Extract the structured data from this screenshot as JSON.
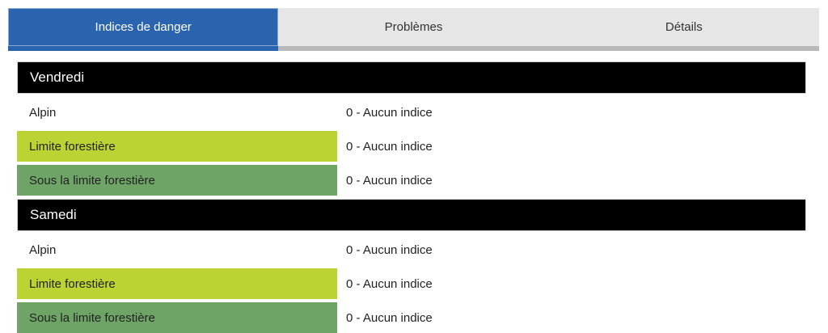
{
  "tabs": [
    {
      "label": "Indices de danger",
      "active": true
    },
    {
      "label": "Problèmes",
      "active": false
    },
    {
      "label": "Détails",
      "active": false
    }
  ],
  "sections": [
    {
      "title": "Vendredi",
      "rows": [
        {
          "label": "Alpin",
          "value": "0 - Aucun indice",
          "band": "none"
        },
        {
          "label": "Limite forestière",
          "value": "0 - Aucun indice",
          "band": "lime"
        },
        {
          "label": "Sous la limite forestière",
          "value": "0 - Aucun indice",
          "band": "green"
        }
      ]
    },
    {
      "title": "Samedi",
      "rows": [
        {
          "label": "Alpin",
          "value": "0 - Aucun indice",
          "band": "none"
        },
        {
          "label": "Limite forestière",
          "value": "0 - Aucun indice",
          "band": "lime"
        },
        {
          "label": "Sous la limite forestière",
          "value": "0 - Aucun indice",
          "band": "green"
        }
      ]
    }
  ],
  "colors": {
    "tab-active": "#2b64ae",
    "tab-inactive-bg": "#e6e6e6",
    "tab-strip": "#b9b9b9",
    "header-bg": "#000000",
    "row-lime": "#bdd233",
    "row-green": "#6fa467"
  }
}
